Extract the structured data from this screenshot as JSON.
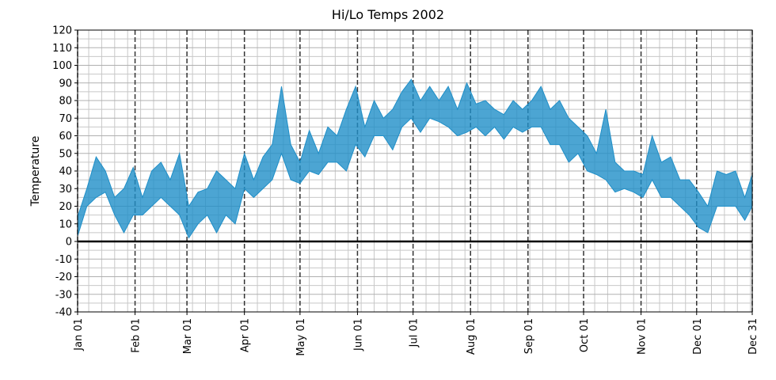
{
  "chart_data": {
    "type": "range_area",
    "title": "Hi/Lo Temps 2002",
    "ylabel": "Temperature",
    "x": [
      0,
      5,
      10,
      15,
      20,
      25,
      30,
      35,
      40,
      45,
      50,
      55,
      60,
      65,
      70,
      75,
      80,
      85,
      90,
      95,
      100,
      105,
      110,
      115,
      120,
      125,
      130,
      135,
      140,
      145,
      150,
      155,
      160,
      165,
      170,
      175,
      180,
      185,
      190,
      195,
      200,
      205,
      210,
      215,
      220,
      225,
      230,
      235,
      240,
      245,
      250,
      255,
      260,
      265,
      270,
      275,
      280,
      285,
      290,
      295,
      300,
      305,
      310,
      315,
      320,
      325,
      330,
      335,
      340,
      345,
      350,
      355,
      360,
      364
    ],
    "high": [
      14,
      30,
      48,
      40,
      25,
      30,
      42,
      25,
      40,
      45,
      35,
      50,
      20,
      28,
      30,
      40,
      35,
      30,
      50,
      35,
      48,
      55,
      88,
      55,
      45,
      63,
      50,
      65,
      60,
      75,
      88,
      65,
      80,
      70,
      75,
      85,
      92,
      80,
      88,
      80,
      88,
      75,
      90,
      78,
      80,
      75,
      72,
      80,
      75,
      80,
      88,
      75,
      80,
      70,
      65,
      60,
      50,
      75,
      45,
      40,
      40,
      38,
      60,
      45,
      48,
      35,
      35,
      28,
      20,
      40,
      38,
      40,
      25,
      38
    ],
    "low": [
      3,
      20,
      25,
      28,
      15,
      5,
      15,
      15,
      20,
      25,
      20,
      15,
      2,
      10,
      15,
      5,
      15,
      10,
      30,
      25,
      30,
      35,
      50,
      35,
      33,
      40,
      38,
      45,
      45,
      40,
      55,
      48,
      60,
      60,
      52,
      65,
      70,
      62,
      70,
      68,
      65,
      60,
      62,
      65,
      60,
      65,
      58,
      65,
      62,
      65,
      65,
      55,
      55,
      45,
      50,
      40,
      38,
      35,
      28,
      30,
      28,
      25,
      35,
      25,
      25,
      20,
      15,
      8,
      5,
      20,
      20,
      20,
      12,
      20
    ],
    "color": "#1f8fc8",
    "xlim": [
      0,
      364
    ],
    "xticks": [
      {
        "value": 0,
        "label": "Jan 01"
      },
      {
        "value": 31,
        "label": "Feb 01"
      },
      {
        "value": 59,
        "label": "Mar 01"
      },
      {
        "value": 90,
        "label": "Apr 01"
      },
      {
        "value": 120,
        "label": "May 01"
      },
      {
        "value": 151,
        "label": "Jun 01"
      },
      {
        "value": 181,
        "label": "Jul 01"
      },
      {
        "value": 212,
        "label": "Aug 01"
      },
      {
        "value": 243,
        "label": "Sep 01"
      },
      {
        "value": 273,
        "label": "Oct 01"
      },
      {
        "value": 304,
        "label": "Nov 01"
      },
      {
        "value": 334,
        "label": "Dec 01"
      },
      {
        "value": 364,
        "label": "Dec 31"
      }
    ],
    "xminorticks": [
      6,
      13,
      20,
      27,
      34,
      41,
      48,
      55,
      62,
      69,
      76,
      83,
      97,
      104,
      111,
      118,
      125,
      132,
      139,
      146,
      153,
      160,
      167,
      174,
      188,
      195,
      202,
      209,
      216,
      223,
      230,
      237,
      244,
      251,
      258,
      265,
      279,
      286,
      293,
      300,
      307,
      314,
      321,
      328,
      342,
      349,
      356,
      363
    ],
    "ylim": [
      -40,
      120
    ],
    "yticks": [
      -40,
      -30,
      -20,
      -10,
      0,
      10,
      20,
      30,
      40,
      50,
      60,
      70,
      80,
      90,
      100,
      110,
      120
    ],
    "yminorticks": [
      -35,
      -25,
      -15,
      -5,
      5,
      15,
      25,
      35,
      45,
      55,
      65,
      75,
      85,
      95,
      105,
      115
    ],
    "grid": true
  }
}
